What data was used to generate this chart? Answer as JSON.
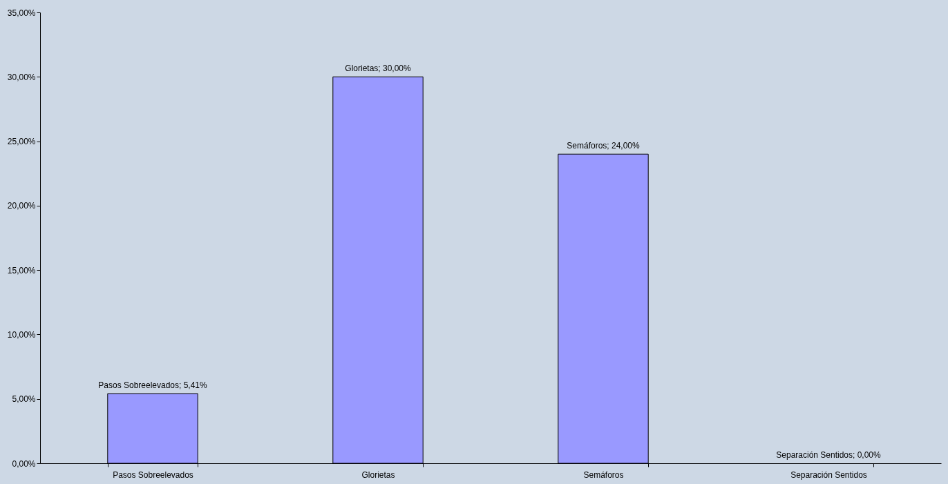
{
  "chart_data": {
    "type": "bar",
    "categories": [
      "Pasos Sobreelevados",
      "Glorietas",
      "Semáforos",
      "Separación Sentidos"
    ],
    "values": [
      5.41,
      30,
      24,
      0
    ],
    "color": "#9999ff",
    "value_labels": [
      "Pasos Sobreelevados; 5,41%",
      "Glorietas; 30,00%",
      "Semáforos; 24,00%",
      "Separación Sentidos; 0,00%"
    ],
    "ylim": [
      0,
      35
    ],
    "yticks": [
      {
        "value": 0,
        "label": "0,00%"
      },
      {
        "value": 5,
        "label": "5,00%"
      },
      {
        "value": 10,
        "label": "10,00%"
      },
      {
        "value": 15,
        "label": "15,00%"
      },
      {
        "value": 20,
        "label": "20,00%"
      },
      {
        "value": 25,
        "label": "25,00%"
      },
      {
        "value": 30,
        "label": "30,00%"
      },
      {
        "value": 35,
        "label": "35,00%"
      }
    ],
    "grid": false
  }
}
